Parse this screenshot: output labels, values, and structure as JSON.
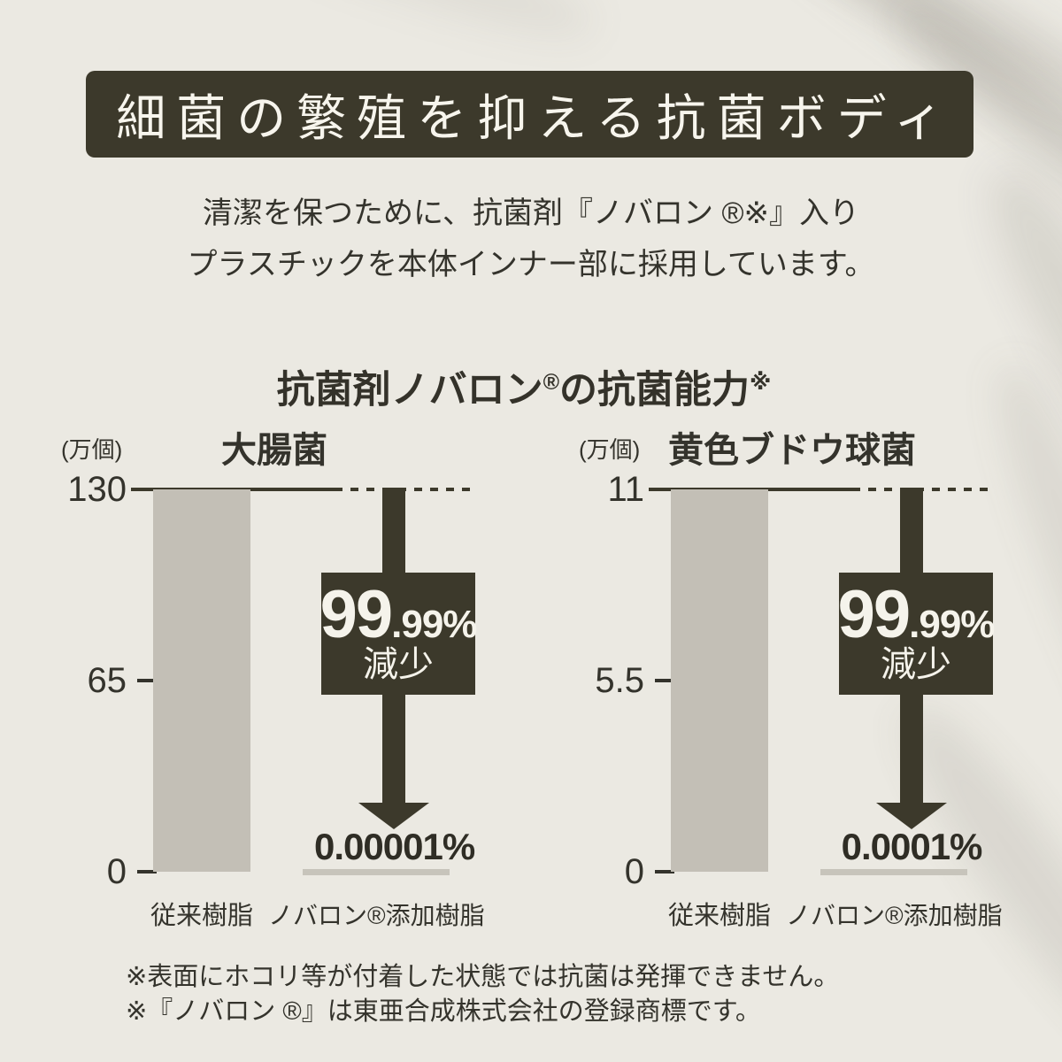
{
  "meta": {
    "background_color": "#ebe9e2",
    "accent_dark": "#3c392b",
    "bar_gray": "#c3bfb6",
    "text_color": "#34332c"
  },
  "banner": {
    "title": "細菌の繁殖を抑える抗菌ボディ"
  },
  "intro": {
    "line1": "清潔を保つために、抗菌剤『ノバロン ®※』入り",
    "line2": "プラスチックを本体インナー部に採用しています。"
  },
  "section": {
    "title_pre": "抗菌剤ノバロン",
    "title_reg": "®",
    "title_post": "の抗菌能力",
    "title_note": "※"
  },
  "charts": [
    {
      "unit_label": "(万個)",
      "title": "大腸菌",
      "ticks": [
        "130",
        "65",
        "0"
      ],
      "badge_big": "99",
      "badge_small": ".99%",
      "badge_caption": "減少",
      "result_value": "0.00001%",
      "categories": [
        "従来樹脂",
        "ノバロン®添加樹脂"
      ]
    },
    {
      "unit_label": "(万個)",
      "title": "黄色ブドウ球菌",
      "ticks": [
        "11",
        "5.5",
        "0"
      ],
      "badge_big": "99",
      "badge_small": ".99%",
      "badge_caption": "減少",
      "result_value": "0.0001%",
      "categories": [
        "従来樹脂",
        "ノバロン®添加樹脂"
      ]
    }
  ],
  "chart_data": [
    {
      "type": "bar",
      "title": "大腸菌",
      "unit": "万個",
      "categories": [
        "従来樹脂",
        "ノバロン®添加樹脂"
      ],
      "values": [
        130,
        1.3e-05
      ],
      "value_labels": [
        "",
        "0.00001%"
      ],
      "annotations": [
        "99.99%減少"
      ],
      "ylim": [
        0,
        130
      ],
      "yticks": [
        0,
        65,
        130
      ],
      "grid": false,
      "legend": false
    },
    {
      "type": "bar",
      "title": "黄色ブドウ球菌",
      "unit": "万個",
      "categories": [
        "従来樹脂",
        "ノバロン®添加樹脂"
      ],
      "values": [
        11,
        1.1e-05
      ],
      "value_labels": [
        "",
        "0.0001%"
      ],
      "annotations": [
        "99.99%減少"
      ],
      "ylim": [
        0,
        11
      ],
      "yticks": [
        0,
        5.5,
        11
      ],
      "grid": false,
      "legend": false
    }
  ],
  "footnotes": {
    "line1": "※表面にホコリ等が付着した状態では抗菌は発揮できません。",
    "line2": "※『ノバロン ®』は東亜合成株式会社の登録商標です。"
  }
}
